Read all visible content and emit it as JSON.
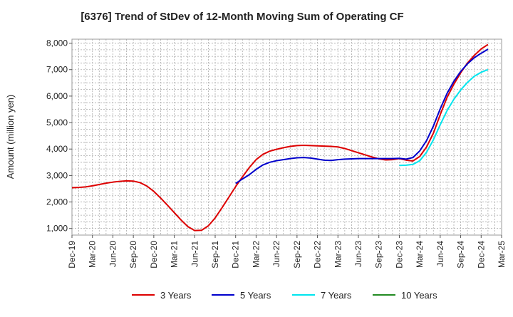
{
  "chart_data": {
    "type": "line",
    "title": "[6376]  Trend of StDev of 12-Month Moving Sum of Operating CF",
    "xlabel": "",
    "ylabel": "Amount (million yen)",
    "ylim": [
      750,
      8150
    ],
    "yticks": [
      1000,
      2000,
      3000,
      4000,
      5000,
      6000,
      7000,
      8000
    ],
    "ytick_labels": [
      "1,000",
      "2,000",
      "3,000",
      "4,000",
      "5,000",
      "6,000",
      "7,000",
      "8,000"
    ],
    "xticks": [
      "Dec-19",
      "Mar-20",
      "Jun-20",
      "Sep-20",
      "Dec-20",
      "Mar-21",
      "Jun-21",
      "Sep-21",
      "Dec-21",
      "Mar-22",
      "Jun-22",
      "Sep-22",
      "Dec-22",
      "Mar-23",
      "Jun-23",
      "Sep-23",
      "Dec-23",
      "Mar-24",
      "Jun-24",
      "Sep-24",
      "Dec-24",
      "Mar-25"
    ],
    "grid": true,
    "legend_position": "bottom",
    "series": [
      {
        "name": "3 Years",
        "color": "#dd0000",
        "points": [
          [
            "Dec-19",
            2540
          ],
          [
            "Jan-20",
            2550
          ],
          [
            "Feb-20",
            2570
          ],
          [
            "Mar-20",
            2610
          ],
          [
            "Apr-20",
            2660
          ],
          [
            "May-20",
            2710
          ],
          [
            "Jun-20",
            2750
          ],
          [
            "Jul-20",
            2780
          ],
          [
            "Aug-20",
            2800
          ],
          [
            "Sep-20",
            2790
          ],
          [
            "Oct-20",
            2730
          ],
          [
            "Nov-20",
            2600
          ],
          [
            "Dec-20",
            2400
          ],
          [
            "Jan-21",
            2150
          ],
          [
            "Feb-21",
            1880
          ],
          [
            "Mar-21",
            1600
          ],
          [
            "Apr-21",
            1320
          ],
          [
            "May-21",
            1070
          ],
          [
            "Jun-21",
            920
          ],
          [
            "Jul-21",
            930
          ],
          [
            "Aug-21",
            1100
          ],
          [
            "Sep-21",
            1400
          ],
          [
            "Oct-21",
            1780
          ],
          [
            "Nov-21",
            2180
          ],
          [
            "Dec-21",
            2580
          ],
          [
            "Jan-22",
            2950
          ],
          [
            "Feb-22",
            3300
          ],
          [
            "Mar-22",
            3600
          ],
          [
            "Apr-22",
            3800
          ],
          [
            "May-22",
            3920
          ],
          [
            "Jun-22",
            3990
          ],
          [
            "Jul-22",
            4050
          ],
          [
            "Aug-22",
            4100
          ],
          [
            "Sep-22",
            4130
          ],
          [
            "Oct-22",
            4140
          ],
          [
            "Nov-22",
            4130
          ],
          [
            "Dec-22",
            4120
          ],
          [
            "Jan-23",
            4110
          ],
          [
            "Feb-23",
            4100
          ],
          [
            "Mar-23",
            4080
          ],
          [
            "Apr-23",
            4020
          ],
          [
            "May-23",
            3940
          ],
          [
            "Jun-23",
            3860
          ],
          [
            "Jul-23",
            3780
          ],
          [
            "Aug-23",
            3700
          ],
          [
            "Sep-23",
            3630
          ],
          [
            "Oct-23",
            3590
          ],
          [
            "Nov-23",
            3600
          ],
          [
            "Dec-23",
            3640
          ],
          [
            "Jan-24",
            3580
          ],
          [
            "Feb-24",
            3550
          ],
          [
            "Mar-24",
            3720
          ],
          [
            "Apr-24",
            4080
          ],
          [
            "May-24",
            4600
          ],
          [
            "Jun-24",
            5300
          ],
          [
            "Jul-24",
            5950
          ],
          [
            "Aug-24",
            6450
          ],
          [
            "Sep-24",
            6880
          ],
          [
            "Oct-24",
            7250
          ],
          [
            "Nov-24",
            7540
          ],
          [
            "Dec-24",
            7780
          ],
          [
            "Jan-25",
            7950
          ]
        ]
      },
      {
        "name": "5 Years",
        "color": "#0000cc",
        "points": [
          [
            "Dec-21",
            2700
          ],
          [
            "Jan-22",
            2870
          ],
          [
            "Feb-22",
            3030
          ],
          [
            "Mar-22",
            3230
          ],
          [
            "Apr-22",
            3400
          ],
          [
            "May-22",
            3500
          ],
          [
            "Jun-22",
            3560
          ],
          [
            "Jul-22",
            3600
          ],
          [
            "Aug-22",
            3640
          ],
          [
            "Sep-22",
            3670
          ],
          [
            "Oct-22",
            3680
          ],
          [
            "Nov-22",
            3660
          ],
          [
            "Dec-22",
            3620
          ],
          [
            "Jan-23",
            3580
          ],
          [
            "Feb-23",
            3570
          ],
          [
            "Mar-23",
            3600
          ],
          [
            "Apr-23",
            3620
          ],
          [
            "May-23",
            3630
          ],
          [
            "Jun-23",
            3640
          ],
          [
            "Jul-23",
            3640
          ],
          [
            "Aug-23",
            3640
          ],
          [
            "Sep-23",
            3640
          ],
          [
            "Oct-23",
            3640
          ],
          [
            "Nov-23",
            3640
          ],
          [
            "Dec-23",
            3650
          ],
          [
            "Jan-24",
            3620
          ],
          [
            "Feb-24",
            3680
          ],
          [
            "Mar-24",
            3930
          ],
          [
            "Apr-24",
            4320
          ],
          [
            "May-24",
            4870
          ],
          [
            "Jun-24",
            5520
          ],
          [
            "Jul-24",
            6100
          ],
          [
            "Aug-24",
            6560
          ],
          [
            "Sep-24",
            6930
          ],
          [
            "Oct-24",
            7220
          ],
          [
            "Nov-24",
            7450
          ],
          [
            "Dec-24",
            7620
          ],
          [
            "Jan-25",
            7770
          ]
        ]
      },
      {
        "name": "7 Years",
        "color": "#00e5ee",
        "points": [
          [
            "Dec-23",
            3380
          ],
          [
            "Jan-24",
            3390
          ],
          [
            "Feb-24",
            3420
          ],
          [
            "Mar-24",
            3560
          ],
          [
            "Apr-24",
            3880
          ],
          [
            "May-24",
            4350
          ],
          [
            "Jun-24",
            4920
          ],
          [
            "Jul-24",
            5450
          ],
          [
            "Aug-24",
            5880
          ],
          [
            "Sep-24",
            6230
          ],
          [
            "Oct-24",
            6520
          ],
          [
            "Nov-24",
            6750
          ],
          [
            "Dec-24",
            6900
          ],
          [
            "Jan-25",
            7000
          ]
        ]
      },
      {
        "name": "10 Years",
        "color": "#228b22",
        "points": []
      }
    ]
  }
}
